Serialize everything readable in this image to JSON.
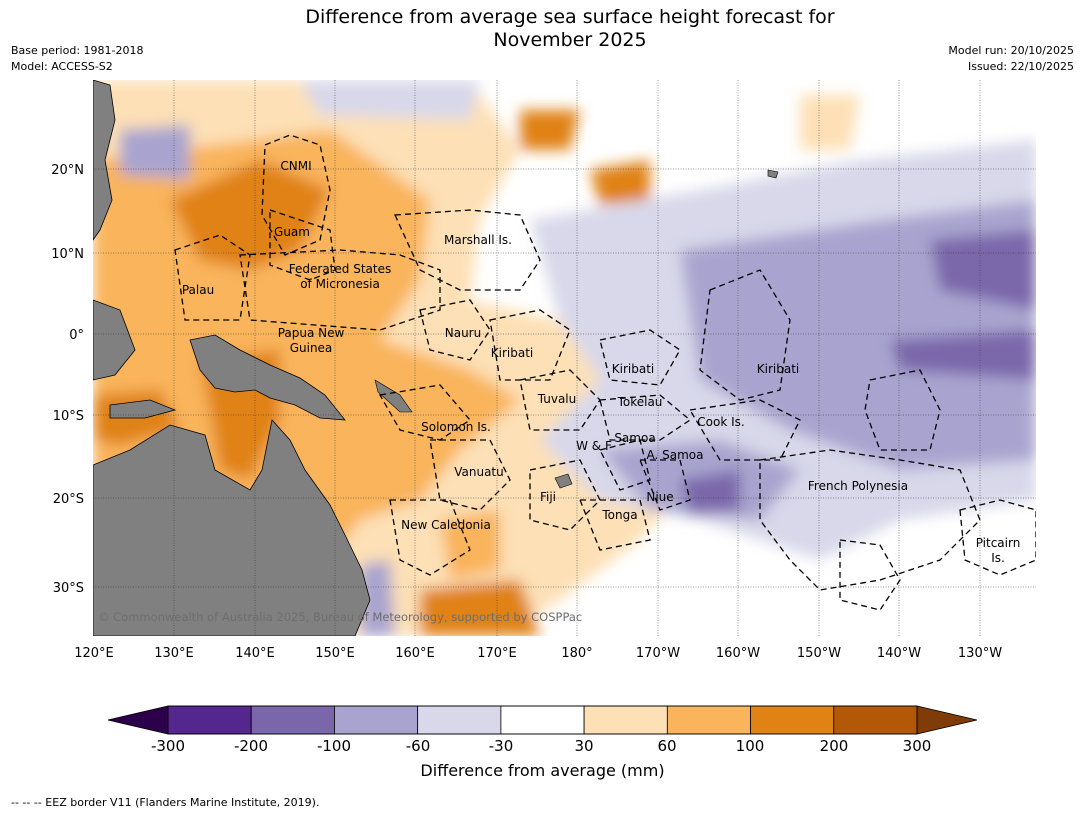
{
  "title": {
    "line1": "Difference from average sea surface height forecast for",
    "line2": "November 2025"
  },
  "meta_left": {
    "base_period": "Base period: 1981-2018",
    "model": "Model: ACCESS-S2"
  },
  "meta_right": {
    "model_run": "Model run: 20/10/2025",
    "issued": "Issued: 22/10/2025"
  },
  "map": {
    "lon_ticks": [
      "120°E",
      "130°E",
      "140°E",
      "150°E",
      "160°E",
      "170°E",
      "180°",
      "170°W",
      "160°W",
      "150°W",
      "140°W",
      "130°W"
    ],
    "lat_ticks": [
      "20°N",
      "10°N",
      "0°",
      "10°S",
      "20°S",
      "30°S"
    ],
    "copyright": "© Commonwealth of Australia 2025, Bureau of Meteorology, supported by COSPPac",
    "regions": [
      "CNMI",
      "Guam",
      "Marshall Is.",
      "Federated States",
      "of Micronesia",
      "Palau",
      "Nauru",
      "Papua New",
      "Guinea",
      "Kiribati",
      "Kiribati",
      "Kiribati",
      "Tuvalu",
      "Tokelau",
      "Solomon Is.",
      "Cook Is.",
      "Samoa",
      "W & F",
      "A. Samoa",
      "Vanuatu",
      "Fiji",
      "Niue",
      "French Polynesia",
      "Tonga",
      "New Caledonia",
      "Pitcairn",
      "Is."
    ]
  },
  "colorbar": {
    "ticks": [
      "-300",
      "-200",
      "-100",
      "-60",
      "-30",
      "30",
      "60",
      "100",
      "200",
      "300"
    ],
    "colors": [
      "#54278f",
      "#7a67ab",
      "#a9a4cf",
      "#d8d8ea",
      "#ffffff",
      "#fde0b6",
      "#f9b45c",
      "#e08214",
      "#b35806"
    ],
    "extend_low": "#2d004b",
    "extend_high": "#7f3b08",
    "label": "Difference from average (mm)"
  },
  "footer": "-- -- -- EEZ border V11 (Flanders Marine Institute, 2019)."
}
